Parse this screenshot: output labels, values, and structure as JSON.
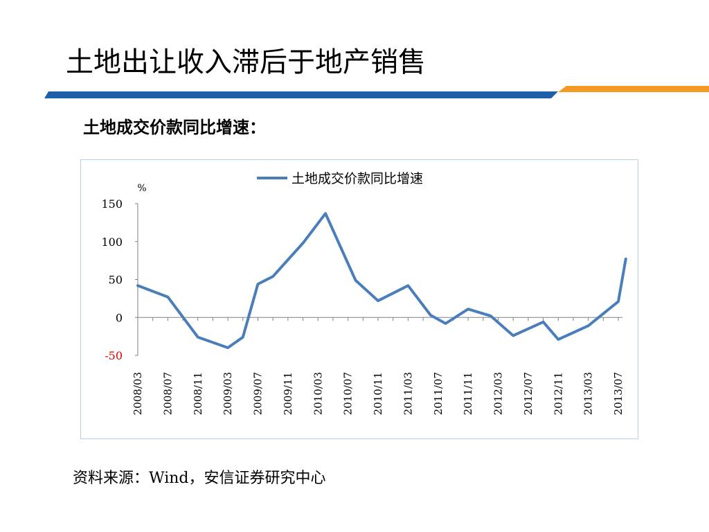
{
  "slide": {
    "title": "土地出让收入滞后于地产销售",
    "subtitle": "土地成交价款同比增速：",
    "source": "资料来源：Wind，安信证券研究中心"
  },
  "colors": {
    "line": "#4a7ebb",
    "band_blue": "#1f5fa9",
    "band_orange": "#f39a25",
    "negative_tick": "#e00000"
  },
  "chart_data": {
    "type": "line",
    "ylabel": "%",
    "ylim": [
      -50,
      150
    ],
    "yticks": [
      -50,
      0,
      50,
      100,
      150
    ],
    "grid": false,
    "legend_position": "top",
    "xticklabels": [
      "2008/03",
      "2008/07",
      "2008/11",
      "2009/03",
      "2009/07",
      "2009/11",
      "2010/03",
      "2010/07",
      "2010/11",
      "2011/03",
      "2011/07",
      "2011/11",
      "2012/03",
      "2012/07",
      "2012/11",
      "2013/03",
      "2013/07"
    ],
    "series": [
      {
        "name": "土地成交价款同比增速",
        "points": [
          [
            "2008/03",
            42
          ],
          [
            "2008/07",
            27
          ],
          [
            "2008/11",
            -26
          ],
          [
            "2009/03",
            -40
          ],
          [
            "2009/05",
            -26
          ],
          [
            "2009/07",
            44
          ],
          [
            "2009/09",
            54
          ],
          [
            "2010/01",
            98
          ],
          [
            "2010/04",
            137
          ],
          [
            "2010/08",
            49
          ],
          [
            "2010/11",
            22
          ],
          [
            "2011/03",
            42
          ],
          [
            "2011/06",
            3
          ],
          [
            "2011/08",
            -8
          ],
          [
            "2011/11",
            11
          ],
          [
            "2012/02",
            2
          ],
          [
            "2012/05",
            -24
          ],
          [
            "2012/09",
            -6
          ],
          [
            "2012/11",
            -29
          ],
          [
            "2013/03",
            -11
          ],
          [
            "2013/07",
            21
          ],
          [
            "2013/08",
            77
          ]
        ]
      }
    ]
  }
}
